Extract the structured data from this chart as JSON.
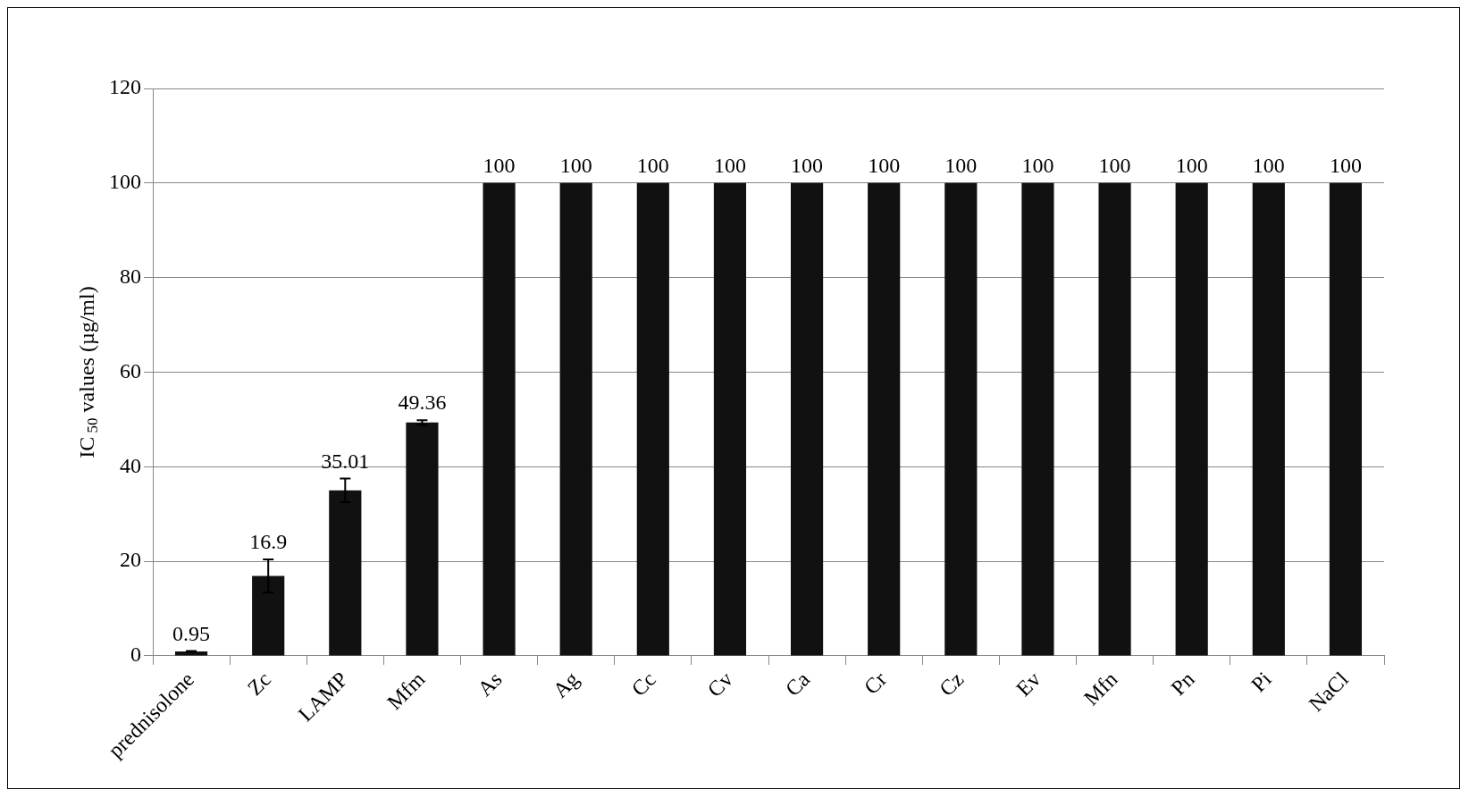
{
  "chart_data": {
    "type": "bar",
    "ylabel": "IC$_{50}$ values (µg/ml)",
    "categories": [
      "prednisolone",
      "Zc",
      "LAMP",
      "Mfm",
      "As",
      "Ag",
      "Cc",
      "Cv",
      "Ca",
      "Cr",
      "Cz",
      "Ev",
      "Mfn",
      "Pn",
      "Pi",
      "NaCl"
    ],
    "values": [
      0.95,
      16.9,
      35.01,
      49.36,
      100,
      100,
      100,
      100,
      100,
      100,
      100,
      100,
      100,
      100,
      100,
      100
    ],
    "errors": [
      0.1,
      3.5,
      2.5,
      0.5,
      null,
      null,
      null,
      null,
      null,
      null,
      null,
      null,
      null,
      null,
      null,
      null
    ],
    "color": "#111111",
    "ylim": [
      0,
      120
    ],
    "yticks": [
      0,
      20,
      40,
      60,
      80,
      100,
      120
    ],
    "grid": "y",
    "data_labels": true,
    "legend": false
  }
}
